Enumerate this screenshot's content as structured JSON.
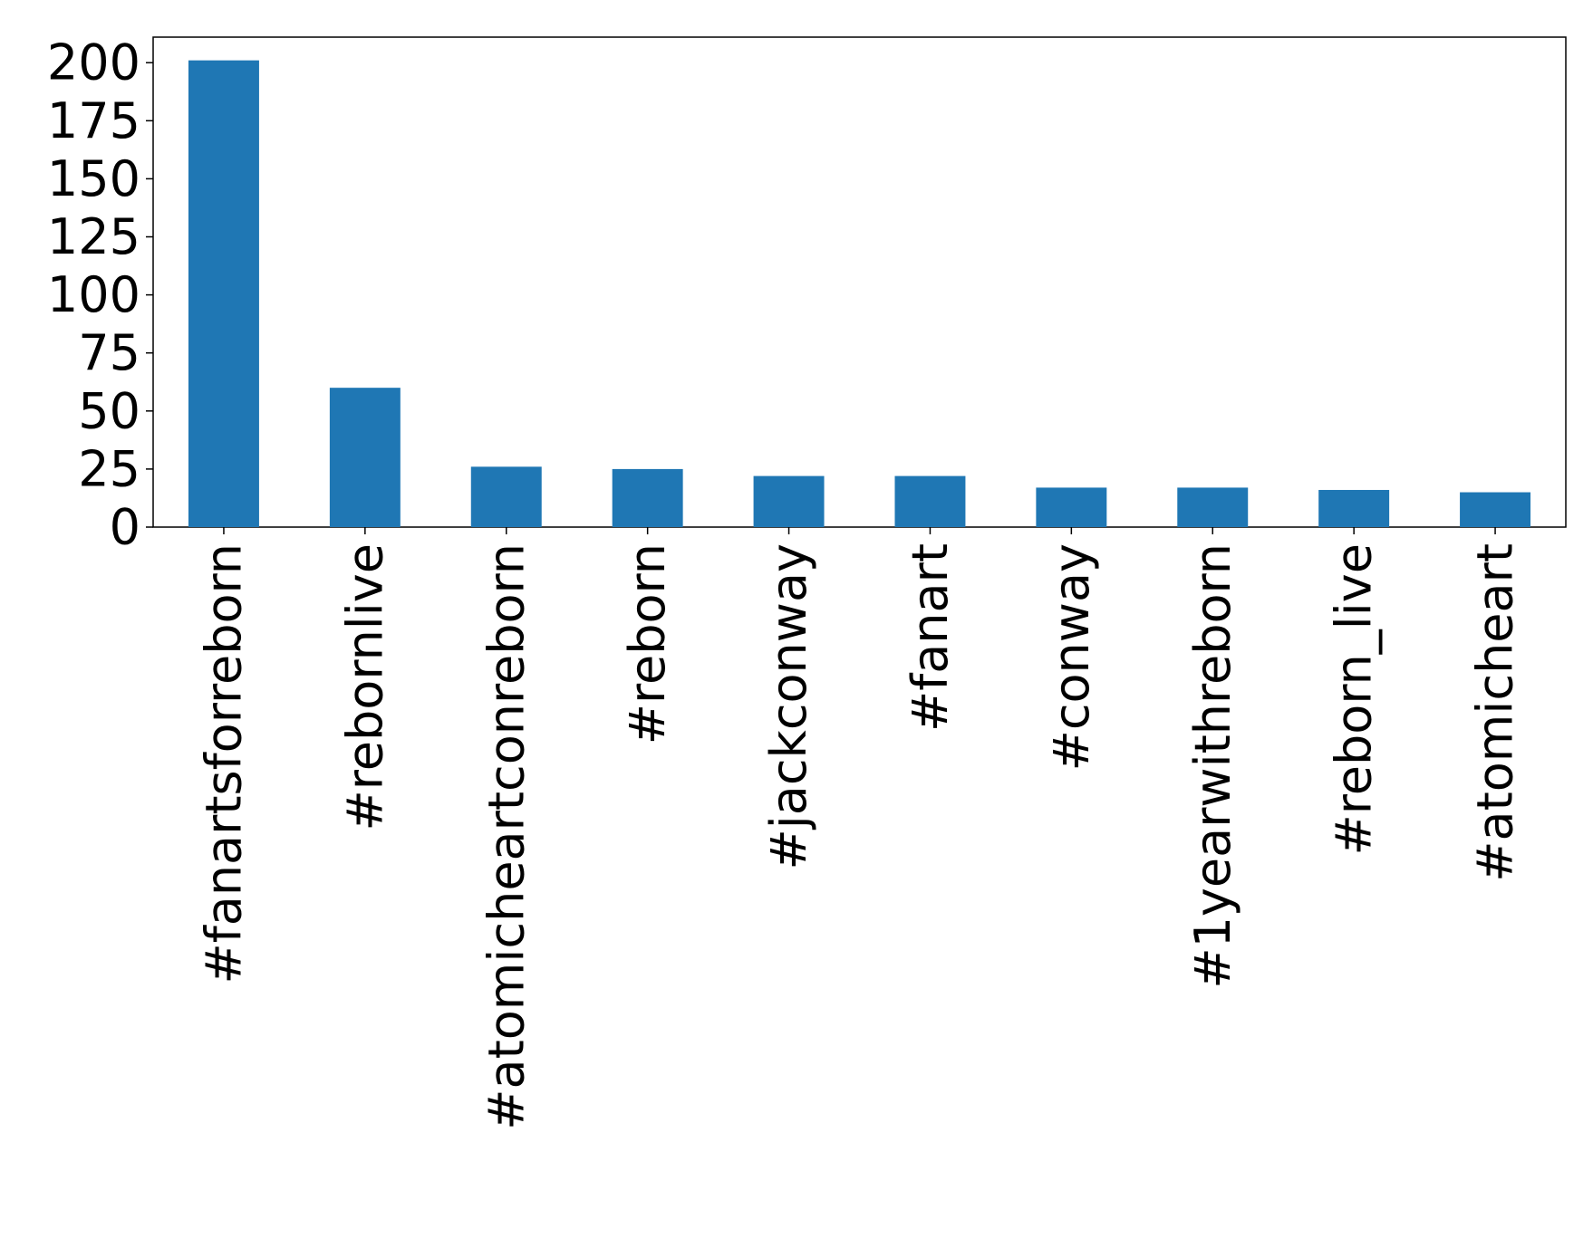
{
  "chart_data": {
    "type": "bar",
    "categories": [
      "#fanartsforreborn",
      "#rebornlive",
      "#atomicheartconreborn",
      "#reborn",
      "#jackconway",
      "#fanart",
      "#conway",
      "#1yearwithreborn",
      "#reborn_live",
      "#atomicheart"
    ],
    "values": [
      201,
      60,
      26,
      25,
      22,
      22,
      17,
      17,
      16,
      15
    ],
    "color": "#1f77b4",
    "ylim": [
      0,
      211
    ],
    "yticks": [
      0,
      25,
      50,
      75,
      100,
      125,
      150,
      175,
      200
    ],
    "grid": false
  }
}
